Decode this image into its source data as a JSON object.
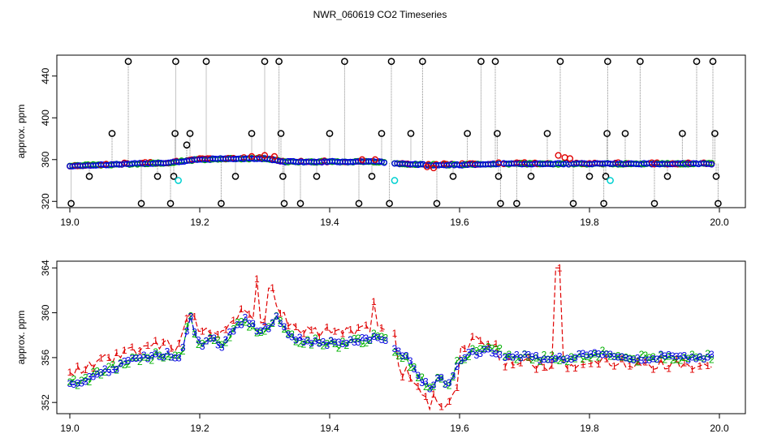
{
  "title": "NWR_060619  CO2 Timeseries",
  "colors": {
    "s1": "#e00000",
    "s2": "#00b000",
    "s3": "#0000e0",
    "s4": "#00d0d0",
    "outlier": "#000000",
    "drop": "#888888"
  },
  "chart_data": [
    {
      "type": "scatter",
      "ylabel": "approx. ppm",
      "xlim": [
        18.98,
        20.04
      ],
      "ylim": [
        314,
        460
      ],
      "xticks": [
        "19.0",
        "19.2",
        "19.4",
        "19.6",
        "19.8",
        "20.0"
      ],
      "yticks": [
        "320",
        "360",
        "400",
        "440"
      ],
      "outliers": [
        {
          "x": 19.002,
          "y": 318
        },
        {
          "x": 19.03,
          "y": 344
        },
        {
          "x": 19.065,
          "y": 385
        },
        {
          "x": 19.09,
          "y": 454
        },
        {
          "x": 19.11,
          "y": 318
        },
        {
          "x": 19.135,
          "y": 344
        },
        {
          "x": 19.155,
          "y": 318
        },
        {
          "x": 19.16,
          "y": 344
        },
        {
          "x": 19.162,
          "y": 385
        },
        {
          "x": 19.163,
          "y": 454
        },
        {
          "x": 19.18,
          "y": 374
        },
        {
          "x": 19.185,
          "y": 385
        },
        {
          "x": 19.21,
          "y": 454
        },
        {
          "x": 19.233,
          "y": 318
        },
        {
          "x": 19.255,
          "y": 344
        },
        {
          "x": 19.28,
          "y": 385
        },
        {
          "x": 19.3,
          "y": 454
        },
        {
          "x": 19.322,
          "y": 454
        },
        {
          "x": 19.325,
          "y": 385
        },
        {
          "x": 19.328,
          "y": 344
        },
        {
          "x": 19.33,
          "y": 318
        },
        {
          "x": 19.355,
          "y": 318
        },
        {
          "x": 19.38,
          "y": 344
        },
        {
          "x": 19.4,
          "y": 385
        },
        {
          "x": 19.423,
          "y": 454
        },
        {
          "x": 19.445,
          "y": 318
        },
        {
          "x": 19.465,
          "y": 344
        },
        {
          "x": 19.48,
          "y": 385
        },
        {
          "x": 19.492,
          "y": 318
        },
        {
          "x": 19.495,
          "y": 454
        },
        {
          "x": 19.525,
          "y": 385
        },
        {
          "x": 19.543,
          "y": 454
        },
        {
          "x": 19.565,
          "y": 318
        },
        {
          "x": 19.59,
          "y": 344
        },
        {
          "x": 19.612,
          "y": 385
        },
        {
          "x": 19.633,
          "y": 454
        },
        {
          "x": 19.655,
          "y": 454
        },
        {
          "x": 19.658,
          "y": 385
        },
        {
          "x": 19.66,
          "y": 344
        },
        {
          "x": 19.663,
          "y": 318
        },
        {
          "x": 19.688,
          "y": 318
        },
        {
          "x": 19.71,
          "y": 344
        },
        {
          "x": 19.735,
          "y": 385
        },
        {
          "x": 19.755,
          "y": 454
        },
        {
          "x": 19.775,
          "y": 318
        },
        {
          "x": 19.8,
          "y": 344
        },
        {
          "x": 19.822,
          "y": 318
        },
        {
          "x": 19.825,
          "y": 344
        },
        {
          "x": 19.827,
          "y": 385
        },
        {
          "x": 19.828,
          "y": 454
        },
        {
          "x": 19.855,
          "y": 385
        },
        {
          "x": 19.878,
          "y": 454
        },
        {
          "x": 19.9,
          "y": 318
        },
        {
          "x": 19.92,
          "y": 344
        },
        {
          "x": 19.943,
          "y": 385
        },
        {
          "x": 19.965,
          "y": 454
        },
        {
          "x": 19.99,
          "y": 454
        },
        {
          "x": 19.993,
          "y": 385
        },
        {
          "x": 19.995,
          "y": 344
        },
        {
          "x": 19.998,
          "y": 318
        }
      ],
      "cyan_points": [
        {
          "x": 19.167,
          "y": 340
        },
        {
          "x": 19.5,
          "y": 340
        },
        {
          "x": 19.832,
          "y": 340
        }
      ],
      "red_points": [
        {
          "x": 19.28,
          "y": 363
        },
        {
          "x": 19.3,
          "y": 364
        },
        {
          "x": 19.315,
          "y": 363
        },
        {
          "x": 19.45,
          "y": 360
        },
        {
          "x": 19.47,
          "y": 360
        },
        {
          "x": 19.55,
          "y": 353
        },
        {
          "x": 19.56,
          "y": 352
        },
        {
          "x": 19.752,
          "y": 364
        },
        {
          "x": 19.762,
          "y": 362
        },
        {
          "x": 19.77,
          "y": 361
        }
      ],
      "series_polyline": [
        {
          "x": 19.0,
          "y": 354
        },
        {
          "x": 19.05,
          "y": 355
        },
        {
          "x": 19.1,
          "y": 356
        },
        {
          "x": 19.15,
          "y": 357
        },
        {
          "x": 19.18,
          "y": 359
        },
        {
          "x": 19.2,
          "y": 360
        },
        {
          "x": 19.25,
          "y": 361
        },
        {
          "x": 19.3,
          "y": 361
        },
        {
          "x": 19.33,
          "y": 358
        },
        {
          "x": 19.4,
          "y": 358
        },
        {
          "x": 19.48,
          "y": 358
        },
        {
          "x": 19.5,
          "y": 356
        },
        {
          "x": 19.55,
          "y": 355
        },
        {
          "x": 19.6,
          "y": 355
        },
        {
          "x": 19.65,
          "y": 356
        },
        {
          "x": 19.7,
          "y": 356
        },
        {
          "x": 19.8,
          "y": 356
        },
        {
          "x": 19.9,
          "y": 356
        },
        {
          "x": 19.99,
          "y": 356
        }
      ]
    },
    {
      "type": "line",
      "ylabel": "approx. ppm",
      "xlim": [
        18.98,
        20.04
      ],
      "ylim": [
        351,
        364.6
      ],
      "xticks": [
        "19.0",
        "19.2",
        "19.4",
        "19.6",
        "19.8",
        "20.0"
      ],
      "yticks": [
        "352",
        "356",
        "360",
        "364"
      ],
      "marker_labels": [
        "1",
        "2",
        "3"
      ],
      "gaps": [
        19.49,
        19.665
      ],
      "base": [
        {
          "x": 19.0,
          "y": 353.6
        },
        {
          "x": 19.03,
          "y": 354.2
        },
        {
          "x": 19.06,
          "y": 354.9
        },
        {
          "x": 19.09,
          "y": 355.6
        },
        {
          "x": 19.12,
          "y": 356.1
        },
        {
          "x": 19.15,
          "y": 356.3
        },
        {
          "x": 19.17,
          "y": 355.9
        },
        {
          "x": 19.185,
          "y": 359.6
        },
        {
          "x": 19.2,
          "y": 357.0
        },
        {
          "x": 19.22,
          "y": 357.7
        },
        {
          "x": 19.235,
          "y": 356.9
        },
        {
          "x": 19.25,
          "y": 358.5
        },
        {
          "x": 19.27,
          "y": 359.4
        },
        {
          "x": 19.29,
          "y": 358.4
        },
        {
          "x": 19.31,
          "y": 358.8
        },
        {
          "x": 19.32,
          "y": 359.6
        },
        {
          "x": 19.335,
          "y": 358.0
        },
        {
          "x": 19.36,
          "y": 357.5
        },
        {
          "x": 19.39,
          "y": 357.3
        },
        {
          "x": 19.42,
          "y": 357.2
        },
        {
          "x": 19.45,
          "y": 357.6
        },
        {
          "x": 19.47,
          "y": 357.8
        },
        {
          "x": 19.49,
          "y": 357.3
        },
        {
          "x": 19.5,
          "y": 356.7
        },
        {
          "x": 19.52,
          "y": 355.9
        },
        {
          "x": 19.54,
          "y": 354.0
        },
        {
          "x": 19.555,
          "y": 353.4
        },
        {
          "x": 19.57,
          "y": 354.5
        },
        {
          "x": 19.58,
          "y": 353.3
        },
        {
          "x": 19.6,
          "y": 355.9
        },
        {
          "x": 19.62,
          "y": 356.4
        },
        {
          "x": 19.64,
          "y": 356.6
        },
        {
          "x": 19.665,
          "y": 356.5
        },
        {
          "x": 19.67,
          "y": 356.1
        },
        {
          "x": 19.7,
          "y": 356.2
        },
        {
          "x": 19.73,
          "y": 355.9
        },
        {
          "x": 19.76,
          "y": 355.9
        },
        {
          "x": 19.79,
          "y": 356.1
        },
        {
          "x": 19.82,
          "y": 356.4
        },
        {
          "x": 19.83,
          "y": 356.3
        },
        {
          "x": 19.86,
          "y": 355.9
        },
        {
          "x": 19.89,
          "y": 355.9
        },
        {
          "x": 19.92,
          "y": 356.1
        },
        {
          "x": 19.95,
          "y": 356.0
        },
        {
          "x": 19.98,
          "y": 356.1
        },
        {
          "x": 19.99,
          "y": 356.2
        }
      ],
      "red_offset": 1.0,
      "red_spikes": [
        {
          "x": 19.752,
          "y": 364.0
        },
        {
          "x": 19.29,
          "y": 363.0
        },
        {
          "x": 19.31,
          "y": 362.2
        },
        {
          "x": 19.575,
          "y": 351.6
        },
        {
          "x": 19.555,
          "y": 351.4
        },
        {
          "x": 19.47,
          "y": 361.0
        },
        {
          "x": 19.18,
          "y": 359.5
        }
      ]
    }
  ]
}
